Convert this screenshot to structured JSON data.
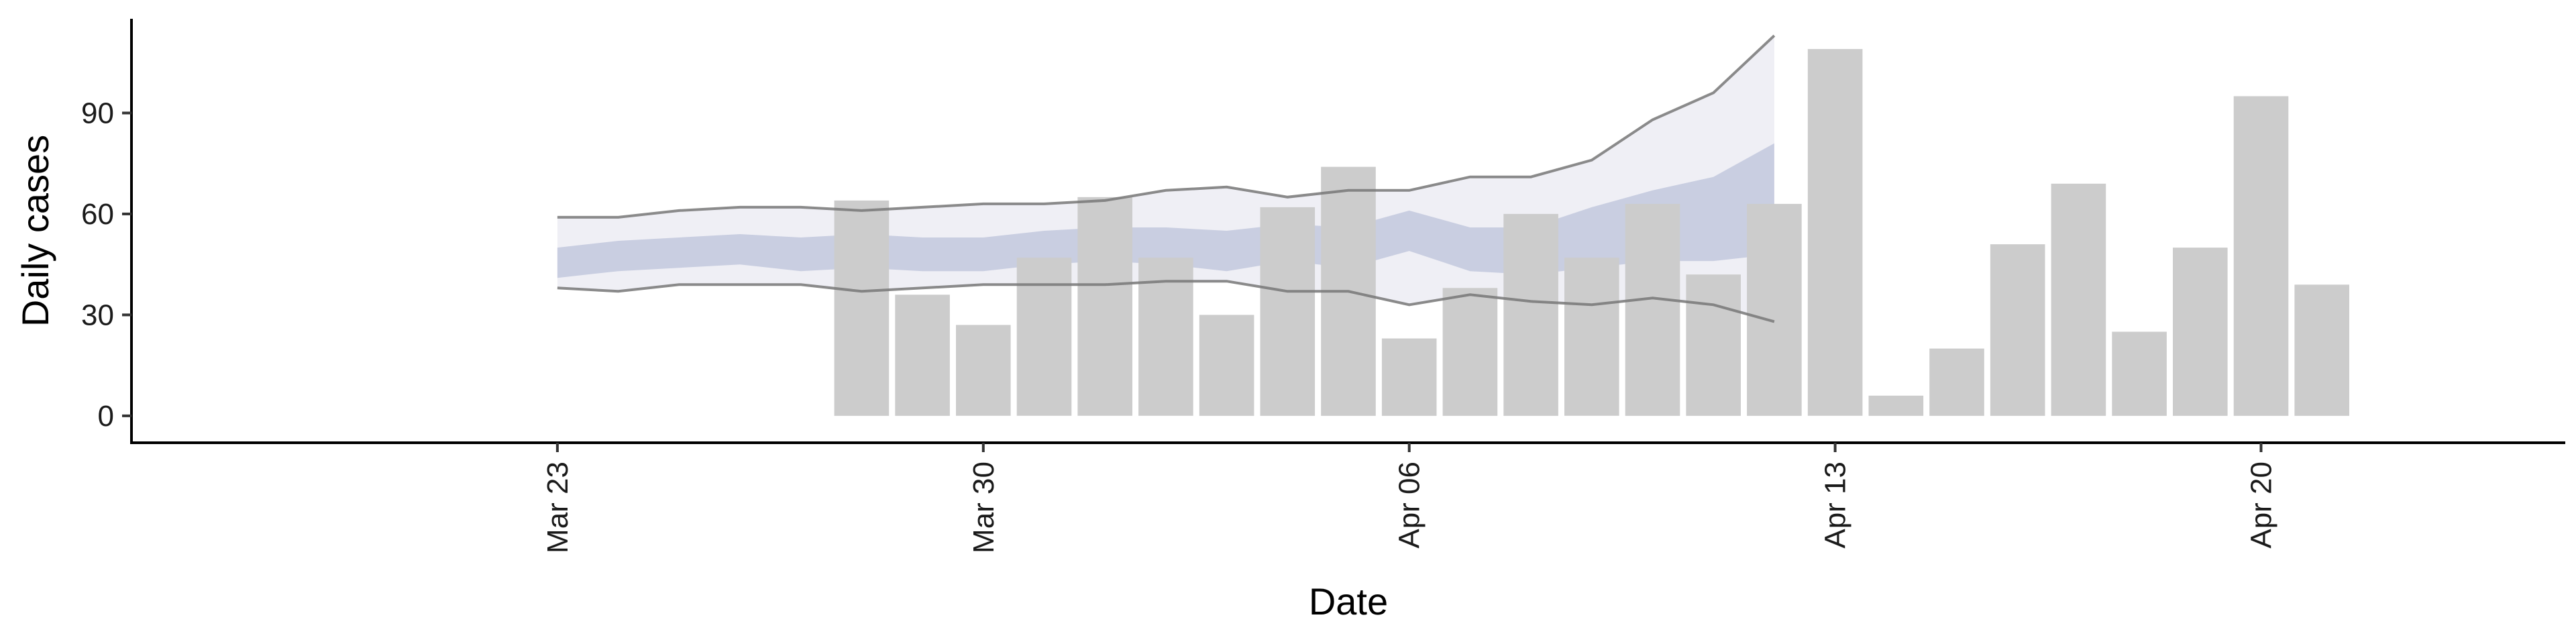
{
  "chart_data": {
    "type": "bar",
    "xlabel": "Date",
    "ylabel": "Daily cases",
    "ylim": [
      -8,
      118
    ],
    "xlim": [
      "2020-03-16",
      "2020-04-25"
    ],
    "y_ticks": [
      0,
      30,
      60,
      90
    ],
    "x_ticks": [
      {
        "date": "2020-03-23",
        "label": "Mar 23"
      },
      {
        "date": "2020-03-30",
        "label": "Mar 30"
      },
      {
        "date": "2020-04-06",
        "label": "Apr 06"
      },
      {
        "date": "2020-04-13",
        "label": "Apr 13"
      },
      {
        "date": "2020-04-20",
        "label": "Apr 20"
      }
    ],
    "grid": false,
    "legend": "none",
    "bar_color": "#cccccc",
    "bars": [
      {
        "date": "2020-03-28",
        "value": 64
      },
      {
        "date": "2020-03-29",
        "value": 36
      },
      {
        "date": "2020-03-30",
        "value": 27
      },
      {
        "date": "2020-03-31",
        "value": 47
      },
      {
        "date": "2020-04-01",
        "value": 65
      },
      {
        "date": "2020-04-02",
        "value": 47
      },
      {
        "date": "2020-04-03",
        "value": 30
      },
      {
        "date": "2020-04-04",
        "value": 62
      },
      {
        "date": "2020-04-05",
        "value": 74
      },
      {
        "date": "2020-04-06",
        "value": 23
      },
      {
        "date": "2020-04-07",
        "value": 38
      },
      {
        "date": "2020-04-08",
        "value": 60
      },
      {
        "date": "2020-04-09",
        "value": 47
      },
      {
        "date": "2020-04-10",
        "value": 63
      },
      {
        "date": "2020-04-11",
        "value": 42
      },
      {
        "date": "2020-04-12",
        "value": 63
      },
      {
        "date": "2020-04-13",
        "value": 109
      },
      {
        "date": "2020-04-14",
        "value": 6
      },
      {
        "date": "2020-04-15",
        "value": 20
      },
      {
        "date": "2020-04-16",
        "value": 51
      },
      {
        "date": "2020-04-17",
        "value": 69
      },
      {
        "date": "2020-04-18",
        "value": 25
      },
      {
        "date": "2020-04-19",
        "value": 50
      },
      {
        "date": "2020-04-20",
        "value": 95
      },
      {
        "date": "2020-04-21",
        "value": 39
      }
    ],
    "estimate": {
      "band_colors": {
        "outer": "#ececf3",
        "inner": "#b9c0d8",
        "outer_line": "#777777"
      },
      "points": [
        {
          "date": "2020-03-23",
          "outer_low": 38,
          "outer_high": 59,
          "inner_low": 41,
          "inner_high": 50
        },
        {
          "date": "2020-03-24",
          "outer_low": 37,
          "outer_high": 59,
          "inner_low": 43,
          "inner_high": 52
        },
        {
          "date": "2020-03-25",
          "outer_low": 39,
          "outer_high": 61,
          "inner_low": 44,
          "inner_high": 53
        },
        {
          "date": "2020-03-26",
          "outer_low": 39,
          "outer_high": 62,
          "inner_low": 45,
          "inner_high": 54
        },
        {
          "date": "2020-03-27",
          "outer_low": 39,
          "outer_high": 62,
          "inner_low": 43,
          "inner_high": 53
        },
        {
          "date": "2020-03-28",
          "outer_low": 37,
          "outer_high": 61,
          "inner_low": 44,
          "inner_high": 54
        },
        {
          "date": "2020-03-29",
          "outer_low": 38,
          "outer_high": 62,
          "inner_low": 43,
          "inner_high": 53
        },
        {
          "date": "2020-03-30",
          "outer_low": 39,
          "outer_high": 63,
          "inner_low": 43,
          "inner_high": 53
        },
        {
          "date": "2020-03-31",
          "outer_low": 39,
          "outer_high": 63,
          "inner_low": 45,
          "inner_high": 55
        },
        {
          "date": "2020-04-01",
          "outer_low": 39,
          "outer_high": 64,
          "inner_low": 46,
          "inner_high": 56
        },
        {
          "date": "2020-04-02",
          "outer_low": 40,
          "outer_high": 67,
          "inner_low": 45,
          "inner_high": 56
        },
        {
          "date": "2020-04-03",
          "outer_low": 40,
          "outer_high": 68,
          "inner_low": 43,
          "inner_high": 55
        },
        {
          "date": "2020-04-04",
          "outer_low": 37,
          "outer_high": 65,
          "inner_low": 46,
          "inner_high": 57
        },
        {
          "date": "2020-04-05",
          "outer_low": 37,
          "outer_high": 67,
          "inner_low": 44,
          "inner_high": 56
        },
        {
          "date": "2020-04-06",
          "outer_low": 33,
          "outer_high": 67,
          "inner_low": 49,
          "inner_high": 61
        },
        {
          "date": "2020-04-07",
          "outer_low": 36,
          "outer_high": 71,
          "inner_low": 43,
          "inner_high": 56
        },
        {
          "date": "2020-04-08",
          "outer_low": 34,
          "outer_high": 71,
          "inner_low": 42,
          "inner_high": 56
        },
        {
          "date": "2020-04-09",
          "outer_low": 33,
          "outer_high": 76,
          "inner_low": 44,
          "inner_high": 62
        },
        {
          "date": "2020-04-10",
          "outer_low": 35,
          "outer_high": 88,
          "inner_low": 46,
          "inner_high": 67
        },
        {
          "date": "2020-04-11",
          "outer_low": 33,
          "outer_high": 96,
          "inner_low": 46,
          "inner_high": 71
        },
        {
          "date": "2020-04-12",
          "outer_low": 28,
          "outer_high": 113,
          "inner_low": 48,
          "inner_high": 81
        }
      ]
    }
  }
}
